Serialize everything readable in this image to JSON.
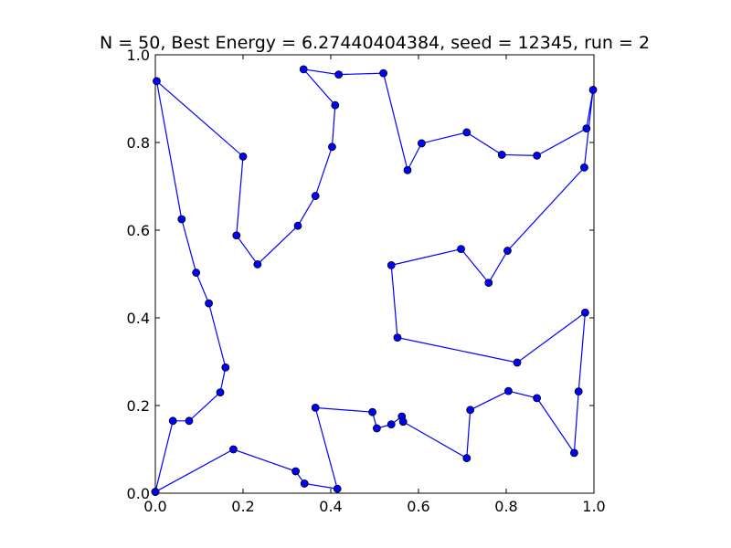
{
  "chart_data": {
    "type": "line",
    "title": "N = 50, Best Energy = 6.27440404384, seed = 12345, run = 2",
    "xlabel": "",
    "ylabel": "",
    "xlim": [
      0.0,
      1.0
    ],
    "ylim": [
      0.0,
      1.0
    ],
    "x_ticks": [
      "0.0",
      "0.2",
      "0.4",
      "0.6",
      "0.8",
      "1.0"
    ],
    "y_ticks": [
      "0.0",
      "0.2",
      "0.4",
      "0.6",
      "0.8",
      "1.0"
    ],
    "grid": false,
    "legend": "none",
    "line_color": "#0000ff",
    "marker_color": "#0000ff",
    "series": [
      {
        "x": [
          0.0,
          0.178,
          0.32,
          0.34,
          0.415,
          0.365,
          0.495,
          0.505,
          0.538,
          0.562,
          0.565,
          0.71,
          0.718,
          0.805,
          0.87,
          0.955,
          0.965,
          0.98,
          0.825,
          0.552,
          0.538,
          0.697,
          0.76,
          0.803,
          0.978,
          0.998,
          0.983,
          0.87,
          0.79,
          0.71,
          0.607,
          0.575,
          0.52,
          0.418,
          0.338,
          0.41,
          0.403,
          0.365,
          0.325,
          0.233,
          0.185,
          0.2,
          0.003,
          0.06,
          0.093,
          0.122,
          0.16,
          0.148,
          0.077,
          0.04,
          0.0
        ],
        "y": [
          0.003,
          0.1,
          0.05,
          0.022,
          0.01,
          0.195,
          0.185,
          0.148,
          0.157,
          0.175,
          0.163,
          0.08,
          0.19,
          0.233,
          0.217,
          0.092,
          0.232,
          0.412,
          0.298,
          0.355,
          0.52,
          0.557,
          0.48,
          0.553,
          0.743,
          0.92,
          0.832,
          0.77,
          0.772,
          0.823,
          0.798,
          0.737,
          0.958,
          0.955,
          0.967,
          0.885,
          0.79,
          0.678,
          0.61,
          0.522,
          0.588,
          0.768,
          0.94,
          0.625,
          0.503,
          0.433,
          0.287,
          0.23,
          0.165,
          0.165,
          0.003
        ]
      }
    ]
  }
}
